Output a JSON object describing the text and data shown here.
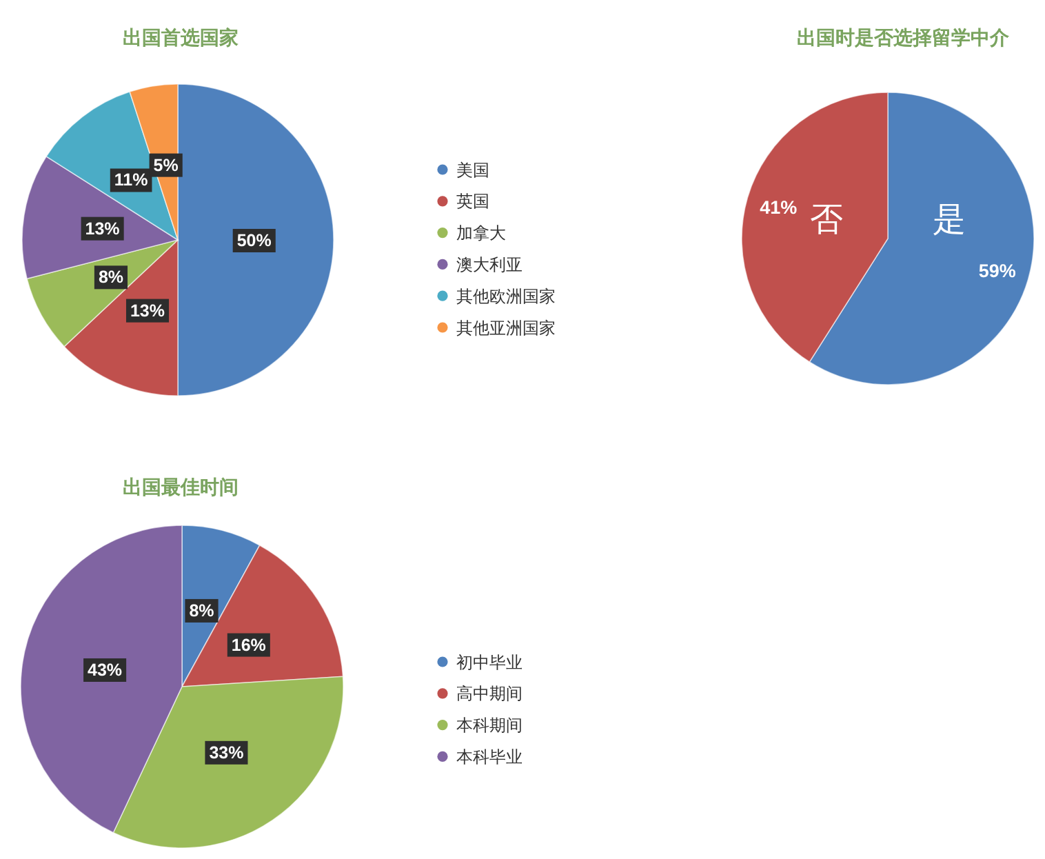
{
  "chart_data": [
    {
      "type": "pie",
      "title": "出国首选国家",
      "categories": [
        "美国",
        "英国",
        "加拿大",
        "澳大利亚",
        "其他欧洲国家",
        "其他亚洲国家"
      ],
      "values": [
        50,
        13,
        8,
        13,
        11,
        5
      ],
      "colors": [
        "#4f81bd",
        "#c0504d",
        "#9bbb59",
        "#8064a2",
        "#4bacc6",
        "#f79646"
      ],
      "value_labels": [
        "50%",
        "13%",
        "8%",
        "13%",
        "11%",
        "5%"
      ],
      "legend": "right"
    },
    {
      "type": "pie",
      "title": "出国时是否选择留学中介",
      "categories": [
        "是",
        "否"
      ],
      "values": [
        59,
        41
      ],
      "colors": [
        "#4f81bd",
        "#c0504d"
      ],
      "value_labels": [
        "59%",
        "41%"
      ]
    },
    {
      "type": "pie",
      "title": "出国最佳时间",
      "categories": [
        "初中毕业",
        "高中期间",
        "本科期间",
        "本科毕业"
      ],
      "values": [
        8,
        16,
        33,
        43
      ],
      "colors": [
        "#4f81bd",
        "#c0504d",
        "#9bbb59",
        "#8064a2"
      ],
      "value_labels": [
        "8%",
        "16%",
        "33%",
        "43%"
      ],
      "legend": "right"
    }
  ]
}
